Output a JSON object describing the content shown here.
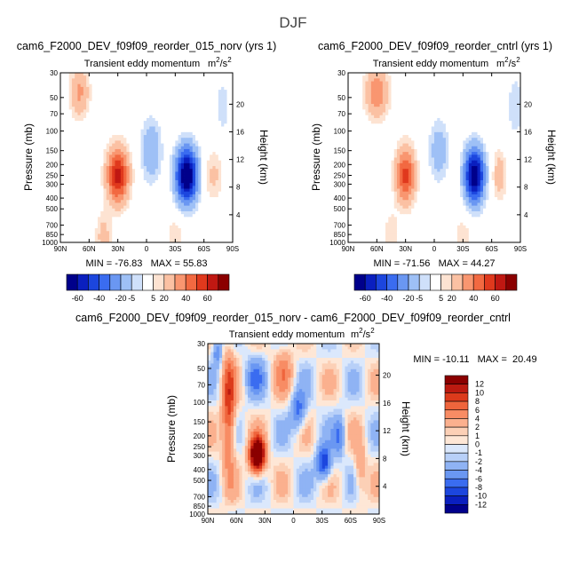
{
  "figure_title": "DJF",
  "chart_data": [
    {
      "type": "heatmap",
      "title": "cam6_F2000_DEV_f09f09_reorder_015_norv (yrs 1)",
      "subtitle": "Transient eddy momentum",
      "units": "m^2/s^2",
      "ylabel": "Pressure (mb)",
      "right_label": "Height (km)",
      "x_ticks": [
        "90N",
        "60N",
        "30N",
        "0",
        "30S",
        "60S",
        "90S"
      ],
      "y_ticks": [
        "30",
        "50",
        "70",
        "100",
        "150",
        "200",
        "250",
        "300",
        "400",
        "500",
        "700",
        "850",
        "1000"
      ],
      "right_ticks": [
        "20",
        "16",
        "12",
        "8",
        "4"
      ],
      "stats": "MIN = -76.83   MAX = 55.83",
      "min": -76.83,
      "max": 55.83,
      "colorbar_levels": [
        "-60",
        "-40",
        "-20",
        "-5",
        "5",
        "20",
        "40",
        "60"
      ]
    },
    {
      "type": "heatmap",
      "title": "cam6_F2000_DEV_f09f09_reorder_cntrl (yrs 1)",
      "subtitle": "Transient eddy momentum",
      "units": "m^2/s^2",
      "ylabel": "Pressure (mb)",
      "right_label": "Height (km)",
      "x_ticks": [
        "90N",
        "60N",
        "30N",
        "0",
        "30S",
        "60S",
        "90S"
      ],
      "y_ticks": [
        "30",
        "50",
        "70",
        "100",
        "150",
        "200",
        "250",
        "300",
        "400",
        "500",
        "700",
        "850",
        "1000"
      ],
      "right_ticks": [
        "20",
        "16",
        "12",
        "8",
        "4"
      ],
      "stats": "MIN = -71.56   MAX = 44.27",
      "min": -71.56,
      "max": 44.27,
      "colorbar_levels": [
        "-60",
        "-40",
        "-20",
        "-5",
        "5",
        "20",
        "40",
        "60"
      ]
    },
    {
      "type": "heatmap",
      "title": "cam6_F2000_DEV_f09f09_reorder_015_norv - cam6_F2000_DEV_f09f09_reorder_cntrl",
      "subtitle": "Transient eddy momentum",
      "units": "m^2/s^2",
      "ylabel": "Pressure (mb)",
      "right_label": "Height (km)",
      "x_ticks": [
        "90N",
        "60N",
        "30N",
        "0",
        "30S",
        "60S",
        "90S"
      ],
      "y_ticks": [
        "30",
        "50",
        "70",
        "100",
        "150",
        "200",
        "250",
        "300",
        "400",
        "500",
        "700",
        "850",
        "1000"
      ],
      "right_ticks": [
        "20",
        "16",
        "12",
        "8",
        "4"
      ],
      "stats": "MIN = -10.11   MAX =  20.49",
      "min": -10.11,
      "max": 20.49,
      "colorbar_levels": [
        "12",
        "10",
        "8",
        "6",
        "4",
        "2",
        "1",
        "0",
        "-1",
        "-2",
        "-4",
        "-6",
        "-8",
        "-10",
        "-12"
      ]
    }
  ],
  "colors": {
    "sym_scale": [
      "#00008b",
      "#0a1fbf",
      "#1c46de",
      "#3a6cf0",
      "#6a97f2",
      "#9ec0f6",
      "#cfe0fa",
      "#ffffff",
      "#fde3d2",
      "#fbc1a3",
      "#f99670",
      "#f26941",
      "#e0391d",
      "#c01812",
      "#8b0000"
    ],
    "diff_scale": [
      "#00008b",
      "#0a1fbf",
      "#1c46de",
      "#3a6cf0",
      "#6a97f2",
      "#8fb3f4",
      "#b8d0f8",
      "#dbe8fc",
      "#fee7d6",
      "#fcd0b6",
      "#fbb08e",
      "#f88c64",
      "#ef653c",
      "#dc3a1b",
      "#bc1a10",
      "#8b0000"
    ]
  }
}
